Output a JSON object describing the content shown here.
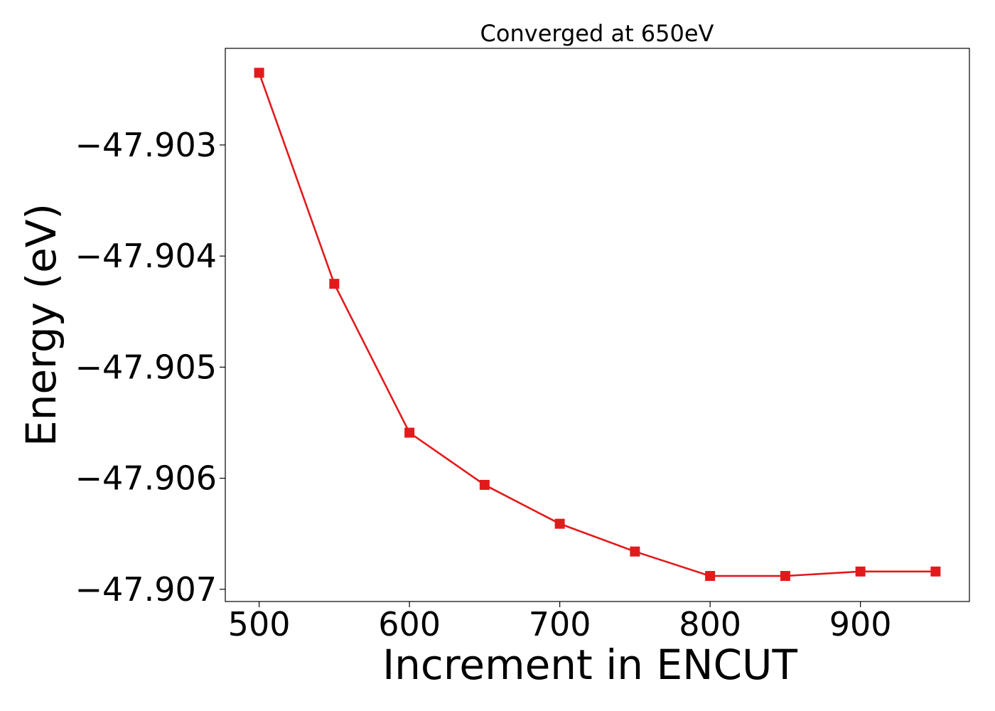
{
  "chart_data": {
    "type": "line",
    "title": "Converged at 650eV",
    "xlabel": "Increment in ENCUT",
    "ylabel": "Energy (eV)",
    "x": [
      500,
      550,
      600,
      650,
      700,
      750,
      800,
      850,
      900,
      950
    ],
    "series": [
      {
        "values": [
          -47.90235,
          -47.90425,
          -47.90559,
          -47.90606,
          -47.90641,
          -47.90666,
          -47.90688,
          -47.90688,
          -47.90684,
          -47.90684
        ],
        "color": "#e31a1c",
        "marker": "square"
      }
    ],
    "xlim": [
      477.5,
      972.5
    ],
    "ylim": [
      -47.90711,
      -47.90213
    ],
    "xticks": [
      500,
      600,
      700,
      800,
      900
    ],
    "xtick_labels": [
      "500",
      "600",
      "700",
      "800",
      "900"
    ],
    "yticks": [
      -47.903,
      -47.904,
      -47.905,
      -47.906,
      -47.907
    ],
    "ytick_labels": [
      "−47.903",
      "−47.904",
      "−47.905",
      "−47.906",
      "−47.907"
    ],
    "grid": false,
    "legend": "none"
  }
}
